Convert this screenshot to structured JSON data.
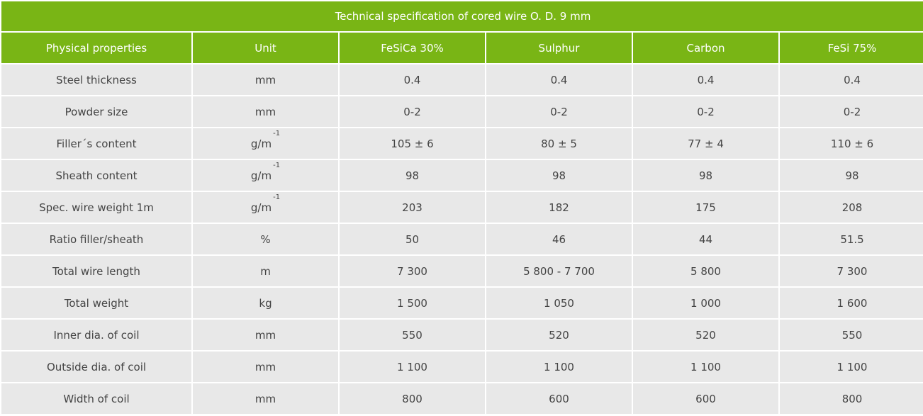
{
  "table": {
    "title": "Technical specification of cored wire O. D. 9 mm",
    "headers": [
      "Physical properties",
      "Unit",
      "FeSiCa 30%",
      "Sulphur",
      "Carbon",
      "FeSi 75%"
    ],
    "rows": [
      {
        "label": "Steel thickness",
        "unit": "mm",
        "values": [
          "0.4",
          "0.4",
          "0.4",
          "0.4"
        ]
      },
      {
        "label": "Powder size",
        "unit": "mm",
        "values": [
          "0-2",
          "0-2",
          "0-2",
          "0-2"
        ]
      },
      {
        "label": "Filler´s content",
        "unit": "g/m",
        "unit_sup": "-1",
        "values": [
          "105 ± 6",
          "80 ± 5",
          "77 ± 4",
          "110 ± 6"
        ]
      },
      {
        "label": "Sheath content",
        "unit": "g/m",
        "unit_sup": "-1",
        "values": [
          "98",
          "98",
          "98",
          "98"
        ]
      },
      {
        "label": "Spec. wire weight 1m",
        "unit": "g/m",
        "unit_sup": "-1",
        "values": [
          "203",
          "182",
          "175",
          "208"
        ]
      },
      {
        "label": "Ratio filler/sheath",
        "unit": "%",
        "values": [
          "50",
          "46",
          "44",
          "51.5"
        ]
      },
      {
        "label": "Total wire length",
        "unit": "m",
        "values": [
          "7 300",
          "5 800 - 7 700",
          "5 800",
          "7 300"
        ]
      },
      {
        "label": "Total weight",
        "unit": "kg",
        "values": [
          "1 500",
          "1 050",
          "1 000",
          "1 600"
        ]
      },
      {
        "label": "Inner dia. of coil",
        "unit": "mm",
        "values": [
          "550",
          "520",
          "520",
          "550"
        ]
      },
      {
        "label": "Outside dia. of coil",
        "unit": "mm",
        "values": [
          "1 100",
          "1 100",
          "1 100",
          "1 100"
        ]
      },
      {
        "label": "Width of coil",
        "unit": "mm",
        "values": [
          "800",
          "600",
          "600",
          "800"
        ]
      }
    ]
  }
}
